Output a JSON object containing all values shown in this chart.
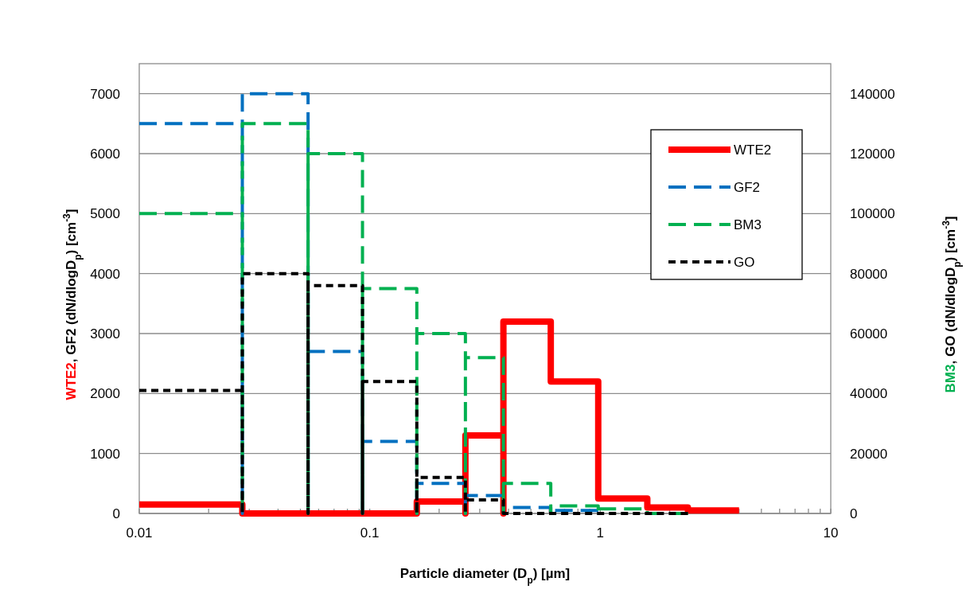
{
  "chart_data": {
    "type": "line",
    "xlabel": "Particle diameter (D$_{p}$) [µm]",
    "ylabel": "WTE2, GF2 (dN/dlogD$_{p}$) [cm$^{-3}$]",
    "y2label": "BM3, GO (dN/dlogD$_{p}$) [cm$^{-3}$]",
    "log": "x",
    "grid": "y",
    "legend": "top right",
    "xlim": [
      0.01,
      10
    ],
    "ylim": [
      0,
      7500
    ],
    "y2lim": [
      0,
      150000
    ],
    "xticks": [
      0.01,
      {
        "value": 0.02,
        "label": null
      },
      {
        "value": 0.03,
        "label": null
      },
      {
        "value": 0.04,
        "label": null
      },
      {
        "value": 0.05,
        "label": null
      },
      {
        "value": 0.06,
        "label": null
      },
      {
        "value": 0.07,
        "label": null
      },
      {
        "value": 0.08,
        "label": null
      },
      {
        "value": 0.09,
        "label": null
      },
      0.1,
      {
        "value": 0.2,
        "label": null
      },
      {
        "value": 0.3,
        "label": null
      },
      {
        "value": 0.4,
        "label": null
      },
      {
        "value": 0.5,
        "label": null
      },
      {
        "value": 0.6,
        "label": null
      },
      {
        "value": 0.7,
        "label": null
      },
      {
        "value": 0.8,
        "label": null
      },
      {
        "value": 0.9,
        "label": null
      },
      1,
      {
        "value": 2,
        "label": null
      },
      {
        "value": 3,
        "label": null
      },
      {
        "value": 4,
        "label": null
      },
      {
        "value": 5,
        "label": null
      },
      {
        "value": 6,
        "label": null
      },
      {
        "value": 7,
        "label": null
      },
      {
        "value": 8,
        "label": null
      },
      {
        "value": 9,
        "label": null
      },
      10
    ],
    "yticks": [
      0,
      1000,
      2000,
      3000,
      4000,
      5000,
      6000,
      7000
    ],
    "y2ticks": [
      0,
      20000,
      40000,
      60000,
      80000,
      100000,
      120000,
      140000
    ],
    "series": [
      {
        "name": "WTE2",
        "color": "#ff0000",
        "line_style": "solid",
        "x": [
          0.01,
          0.028,
          0.028,
          0.16,
          0.16,
          0.26,
          0.26,
          0.26,
          0.38,
          0.38,
          0.38,
          0.61,
          0.61,
          0.98,
          0.98,
          1.6,
          1.6,
          2.4,
          2.4,
          4.0
        ],
        "values": [
          150,
          150,
          0,
          0,
          200,
          200,
          0,
          1300,
          1300,
          0,
          3200,
          3200,
          2200,
          2200,
          250,
          250,
          100,
          100,
          50,
          50
        ]
      },
      {
        "name": "GF2",
        "color": "#0070c0",
        "line_style": "dashed",
        "x": [
          0.01,
          0.028,
          0.028,
          0.028,
          0.054,
          0.054,
          0.054,
          0.093,
          0.093,
          0.093,
          0.16,
          0.16,
          0.16,
          0.26,
          0.26,
          0.26,
          0.38,
          0.38,
          0.38,
          0.61,
          0.61,
          0.61,
          0.98
        ],
        "values": [
          6500,
          6500,
          0,
          7000,
          7000,
          0,
          2700,
          2700,
          0,
          1200,
          1200,
          0,
          500,
          500,
          0,
          300,
          300,
          0,
          100,
          100,
          0,
          50,
          50
        ]
      },
      {
        "name": "BM3",
        "color": "#00b050",
        "line_style": "dashed",
        "axis": "y2",
        "x": [
          0.01,
          0.028,
          0.028,
          0.028,
          0.054,
          0.054,
          0.054,
          0.093,
          0.093,
          0.093,
          0.16,
          0.16,
          0.16,
          0.26,
          0.26,
          0.26,
          0.38,
          0.38,
          0.38,
          0.61,
          0.61,
          0.61,
          0.98,
          0.98,
          0.98,
          1.6,
          1.6,
          2.4
        ],
        "values": [
          100000,
          100000,
          0,
          130000,
          130000,
          0,
          120000,
          120000,
          0,
          75000,
          75000,
          0,
          60000,
          60000,
          0,
          52000,
          52000,
          0,
          10000,
          10000,
          0,
          2500,
          2500,
          0,
          1500,
          1500,
          0,
          0
        ]
      },
      {
        "name": "GO",
        "color": "#000000",
        "line_style": "dotted",
        "axis": "y2",
        "x": [
          0.01,
          0.028,
          0.028,
          0.028,
          0.054,
          0.054,
          0.054,
          0.093,
          0.093,
          0.093,
          0.16,
          0.16,
          0.16,
          0.26,
          0.26,
          0.26,
          0.38,
          0.38,
          2.4
        ],
        "values": [
          41000,
          41000,
          0,
          80000,
          80000,
          0,
          76000,
          76000,
          0,
          44000,
          44000,
          0,
          12000,
          12000,
          0,
          4500,
          4500,
          0,
          0
        ]
      }
    ]
  }
}
